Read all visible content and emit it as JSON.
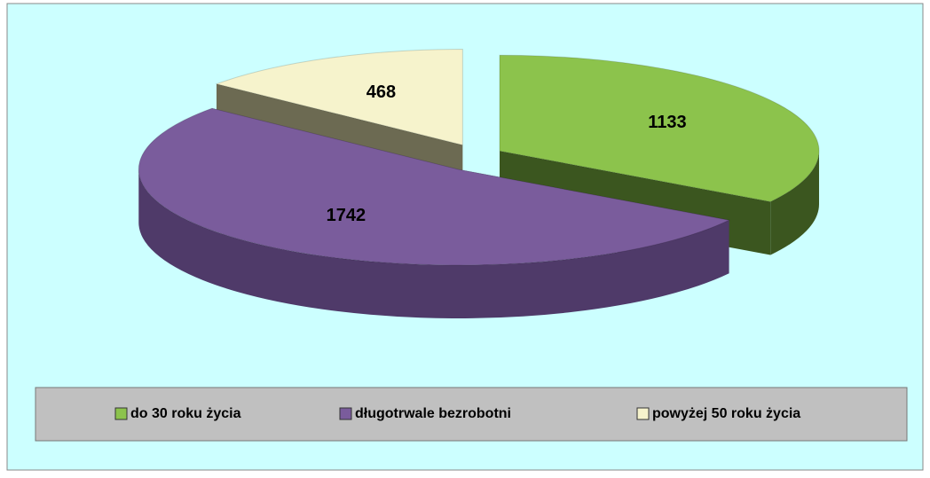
{
  "chart_data": {
    "type": "pie",
    "categories": [
      "do 30 roku życia",
      "długotrwale bezrobotni",
      "powyżej 50 roku życia"
    ],
    "values": [
      1133,
      1742,
      468
    ],
    "colors": [
      "#8cc34c",
      "#7a5c9c",
      "#f6f3cc"
    ],
    "side_colors": [
      "#3b561f",
      "#4f3a69",
      "#6c6a52"
    ],
    "legend": "bottom"
  }
}
